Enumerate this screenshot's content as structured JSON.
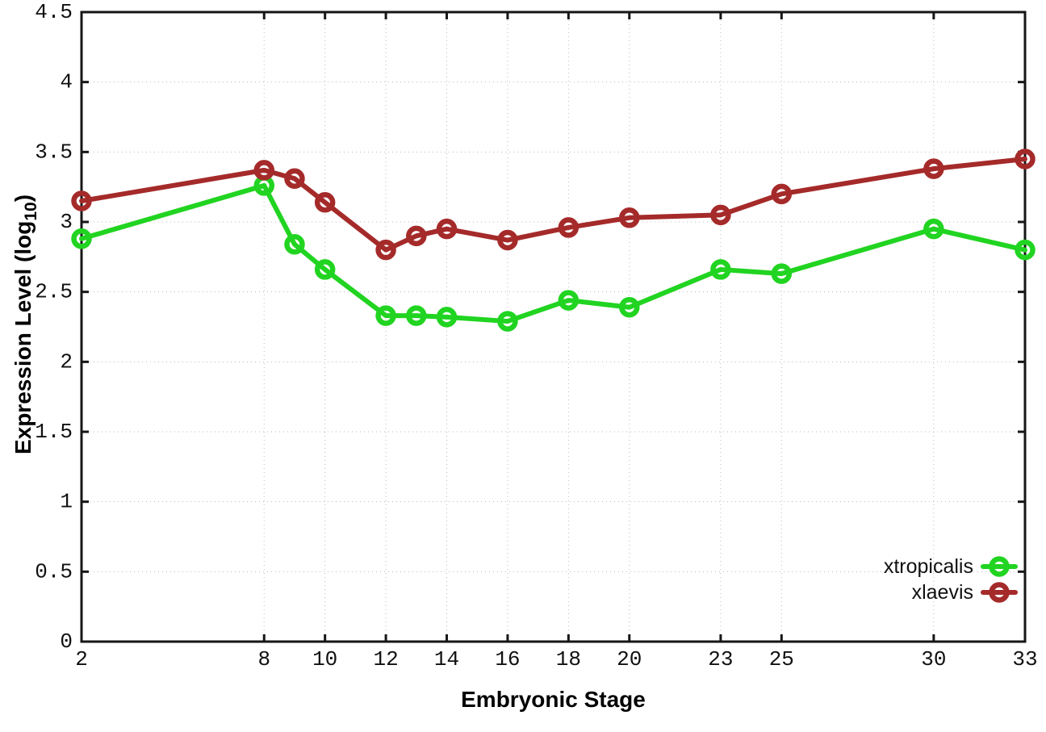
{
  "figure": {
    "background": "#ffffff",
    "axis_color": "#161616",
    "grid_color": "#bbbbbb",
    "tick_label_color": "#111111"
  },
  "chart_data": {
    "type": "line",
    "title": "",
    "xlabel": "Embryonic Stage",
    "ylabel": "Expression Level (log10)",
    "ylabel_parts": {
      "main": "Expression Level (log",
      "sub": "10",
      "end": ")"
    },
    "x": [
      2,
      8,
      9,
      10,
      12,
      13,
      14,
      16,
      18,
      20,
      23,
      25,
      30,
      33
    ],
    "xtick_labels": [
      "2",
      "8",
      "10",
      "12",
      "14",
      "16",
      "18",
      "20",
      "23",
      "25",
      "30",
      "33"
    ],
    "ytick_labels": [
      "0",
      "0.5",
      "1",
      "1.5",
      "2",
      "2.5",
      "3",
      "3.5",
      "4",
      "4.5"
    ],
    "xlim": [
      2,
      33
    ],
    "ylim": [
      0,
      4.5
    ],
    "grid": true,
    "legend_position": "bottom-right",
    "series": [
      {
        "name": "xtropicalis",
        "color": "#21d421",
        "marker": "open-circle",
        "values": [
          2.88,
          3.26,
          2.84,
          2.66,
          2.33,
          2.33,
          2.32,
          2.29,
          2.44,
          2.39,
          2.66,
          2.63,
          2.95,
          2.8
        ]
      },
      {
        "name": "xlaevis",
        "color": "#a52a2a",
        "marker": "open-circle",
        "values": [
          3.15,
          3.37,
          3.31,
          3.14,
          2.8,
          2.9,
          2.95,
          2.87,
          2.96,
          3.03,
          3.05,
          3.2,
          3.38,
          3.45
        ]
      }
    ]
  }
}
